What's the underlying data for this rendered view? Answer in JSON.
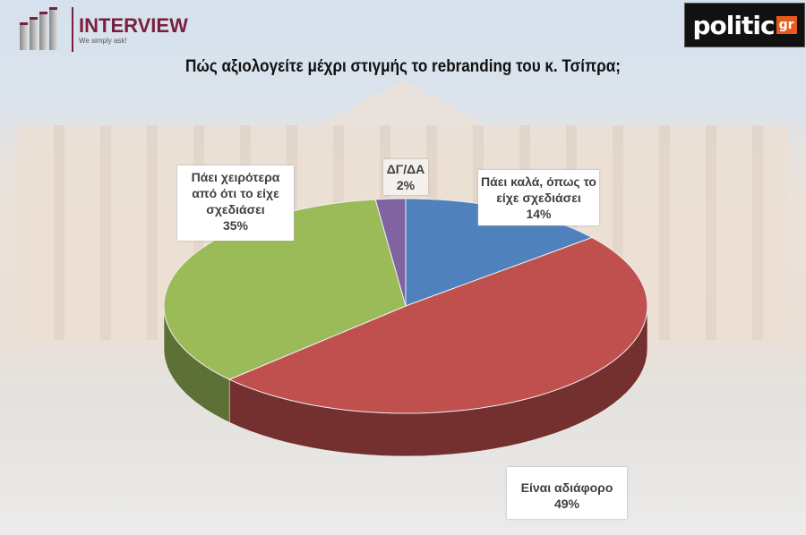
{
  "logo_left": {
    "name": "INTERVIEW",
    "tagline": "We simply ask!"
  },
  "logo_right": {
    "name": "politic",
    "suffix": "gr"
  },
  "chart_data": {
    "type": "pie",
    "title": "Πώς αξιολογείτε μέχρι στιγμής το rebranding του κ. Τσίπρα;",
    "style": "3d",
    "slices": [
      {
        "label": "Πάει καλά, όπως το είχε σχεδιάσει",
        "value": 14,
        "display": "14%",
        "color": "#4f81bd"
      },
      {
        "label": "Είναι αδιάφορο",
        "value": 49,
        "display": "49%",
        "color": "#c0504d"
      },
      {
        "label": "Πάει χειρότερα από ότι το είχε σχεδιάσει",
        "value": 35,
        "display": "35%",
        "color": "#9bbb59"
      },
      {
        "label": "ΔΓ/ΔΑ",
        "value": 2,
        "display": "2%",
        "color": "#8064a2"
      }
    ]
  }
}
